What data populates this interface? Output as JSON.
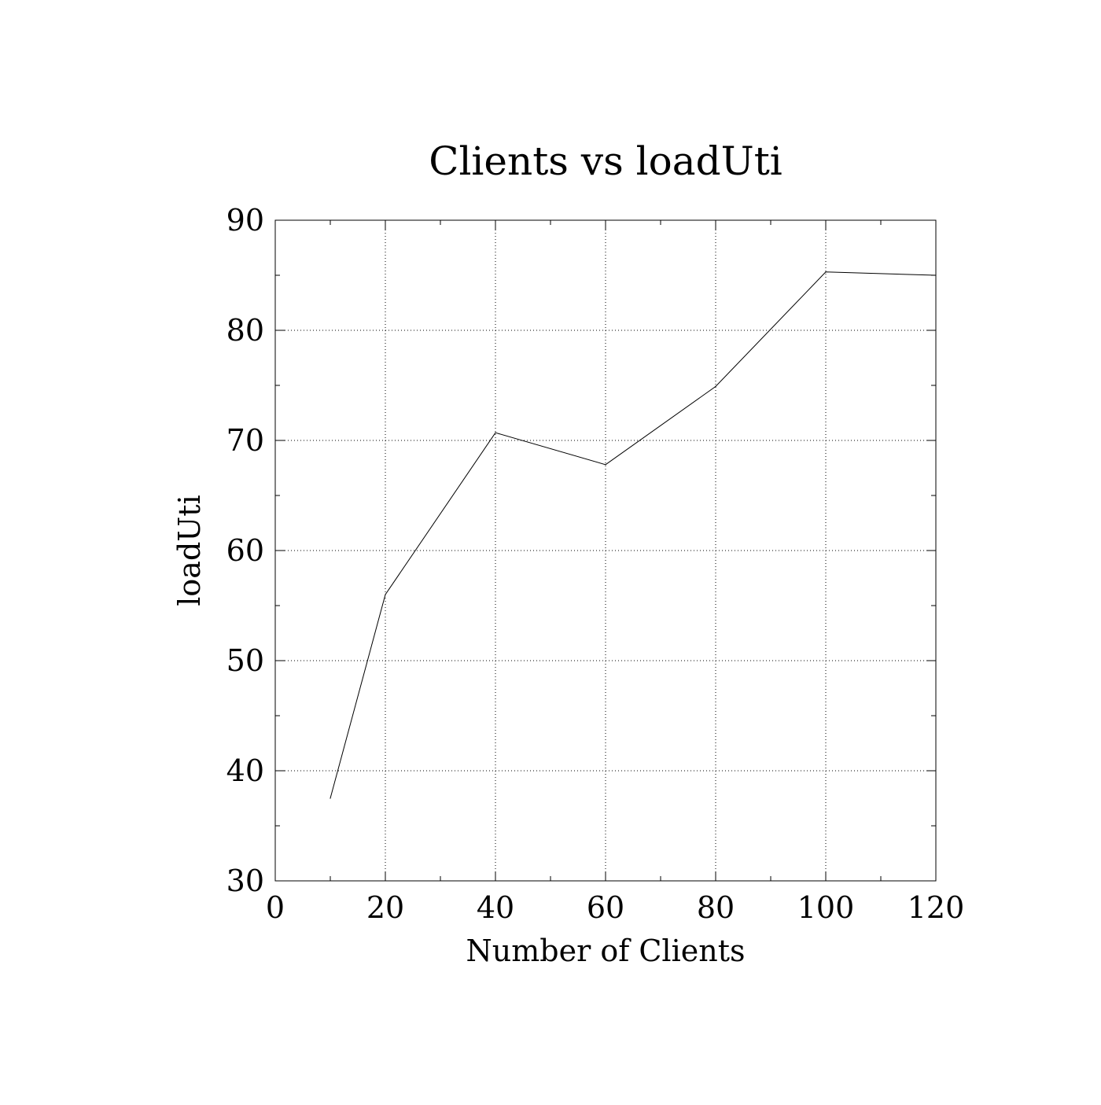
{
  "chart_data": {
    "type": "line",
    "title": "Clients vs loadUti",
    "xlabel": "Number of Clients",
    "ylabel": "loadUti",
    "xlim": [
      0,
      120
    ],
    "ylim": [
      30,
      90
    ],
    "x_ticks": [
      0,
      20,
      40,
      60,
      80,
      100,
      120
    ],
    "y_ticks": [
      30,
      40,
      50,
      60,
      70,
      80,
      90
    ],
    "x_tick_labels": [
      "0",
      "20",
      "40",
      "60",
      "80",
      "100",
      "120"
    ],
    "y_tick_labels": [
      "30",
      "40",
      "50",
      "60",
      "70",
      "80",
      "90"
    ],
    "grid": true,
    "legend": "none",
    "series": [
      {
        "x": [
          10,
          20,
          40,
          60,
          80,
          100,
          120
        ],
        "y": [
          37.5,
          56.0,
          70.7,
          67.8,
          74.9,
          85.3,
          85.0
        ],
        "color": "#000000"
      }
    ]
  }
}
